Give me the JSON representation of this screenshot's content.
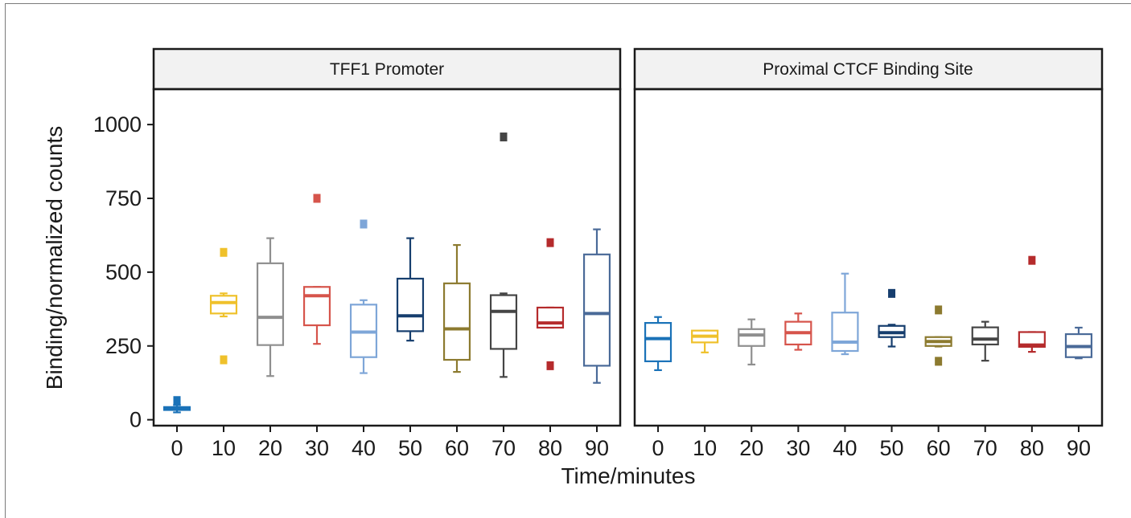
{
  "chart_data": {
    "type": "boxplot",
    "xlabel": "Time/minutes",
    "ylabel": "Binding/normalized counts",
    "ylim": [
      -20,
      1120
    ],
    "yticks": [
      0,
      250,
      500,
      750,
      1000
    ],
    "categories": [
      "0",
      "10",
      "20",
      "30",
      "40",
      "50",
      "60",
      "70",
      "80",
      "90"
    ],
    "colors": [
      "#1a72b8",
      "#efc12b",
      "#8f8f8f",
      "#d6544b",
      "#7ea6d8",
      "#163e6e",
      "#8c7a2f",
      "#454545",
      "#b52b2c",
      "#4a6a98"
    ],
    "grid": false,
    "legend": "none",
    "panels": [
      {
        "title": "TFF1 Promoter",
        "boxes": [
          {
            "x": "0",
            "whisker_low": 25,
            "q1": 33,
            "median": 38,
            "q3": 43,
            "whisker_high": 50,
            "outliers": [
              65
            ]
          },
          {
            "x": "10",
            "whisker_low": 350,
            "q1": 360,
            "median": 397,
            "q3": 420,
            "whisker_high": 428,
            "outliers": [
              567,
              203
            ]
          },
          {
            "x": "20",
            "whisker_low": 148,
            "q1": 253,
            "median": 347,
            "q3": 530,
            "whisker_high": 615,
            "outliers": []
          },
          {
            "x": "30",
            "whisker_low": 257,
            "q1": 320,
            "median": 420,
            "q3": 450,
            "whisker_high": 450,
            "outliers": [
              750
            ]
          },
          {
            "x": "40",
            "whisker_low": 158,
            "q1": 212,
            "median": 297,
            "q3": 390,
            "whisker_high": 405,
            "outliers": [
              663
            ]
          },
          {
            "x": "50",
            "whisker_low": 268,
            "q1": 300,
            "median": 352,
            "q3": 478,
            "whisker_high": 615,
            "outliers": []
          },
          {
            "x": "60",
            "whisker_low": 162,
            "q1": 203,
            "median": 308,
            "q3": 462,
            "whisker_high": 592,
            "outliers": []
          },
          {
            "x": "70",
            "whisker_low": 145,
            "q1": 240,
            "median": 367,
            "q3": 422,
            "whisker_high": 428,
            "outliers": [
              958
            ]
          },
          {
            "x": "80",
            "whisker_low": 312,
            "q1": 312,
            "median": 328,
            "q3": 380,
            "whisker_high": 380,
            "outliers": [
              600,
              183
            ]
          },
          {
            "x": "90",
            "whisker_low": 125,
            "q1": 183,
            "median": 360,
            "q3": 560,
            "whisker_high": 645,
            "outliers": []
          }
        ]
      },
      {
        "title": "Proximal CTCF Binding Site",
        "boxes": [
          {
            "x": "0",
            "whisker_low": 168,
            "q1": 198,
            "median": 275,
            "q3": 328,
            "whisker_high": 348,
            "outliers": []
          },
          {
            "x": "10",
            "whisker_low": 228,
            "q1": 262,
            "median": 283,
            "q3": 302,
            "whisker_high": 302,
            "outliers": []
          },
          {
            "x": "20",
            "whisker_low": 187,
            "q1": 250,
            "median": 287,
            "q3": 307,
            "whisker_high": 340,
            "outliers": []
          },
          {
            "x": "30",
            "whisker_low": 237,
            "q1": 255,
            "median": 295,
            "q3": 332,
            "whisker_high": 360,
            "outliers": []
          },
          {
            "x": "40",
            "whisker_low": 222,
            "q1": 233,
            "median": 263,
            "q3": 363,
            "whisker_high": 495,
            "outliers": []
          },
          {
            "x": "50",
            "whisker_low": 248,
            "q1": 280,
            "median": 295,
            "q3": 318,
            "whisker_high": 322,
            "outliers": [
              428
            ]
          },
          {
            "x": "60",
            "whisker_low": 248,
            "q1": 250,
            "median": 265,
            "q3": 280,
            "whisker_high": 280,
            "outliers": [
              372,
              198
            ]
          },
          {
            "x": "70",
            "whisker_low": 200,
            "q1": 255,
            "median": 273,
            "q3": 313,
            "whisker_high": 332,
            "outliers": []
          },
          {
            "x": "80",
            "whisker_low": 230,
            "q1": 247,
            "median": 253,
            "q3": 297,
            "whisker_high": 297,
            "outliers": [
              540
            ]
          },
          {
            "x": "90",
            "whisker_low": 208,
            "q1": 212,
            "median": 248,
            "q3": 290,
            "whisker_high": 312,
            "outliers": []
          }
        ]
      }
    ]
  }
}
